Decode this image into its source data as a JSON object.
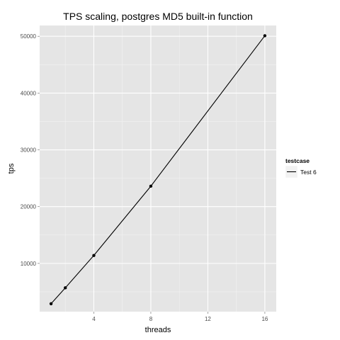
{
  "chart_data": {
    "type": "line",
    "title": "TPS scaling, postgres MD5 built-in function",
    "xlabel": "threads",
    "ylabel": "tps",
    "xlim": [
      0.2,
      16.8
    ],
    "ylim": [
      1500,
      51900
    ],
    "x_ticks": [
      4,
      8,
      12,
      16
    ],
    "y_ticks": [
      10000,
      20000,
      30000,
      40000,
      50000
    ],
    "grid": true,
    "legend_title": "testcase",
    "legend_position": "right",
    "series": [
      {
        "name": "Test 6",
        "color": "#000000",
        "x": [
          1,
          2,
          4,
          8,
          16
        ],
        "y": [
          2900,
          5700,
          11400,
          23600,
          50100
        ]
      }
    ]
  }
}
